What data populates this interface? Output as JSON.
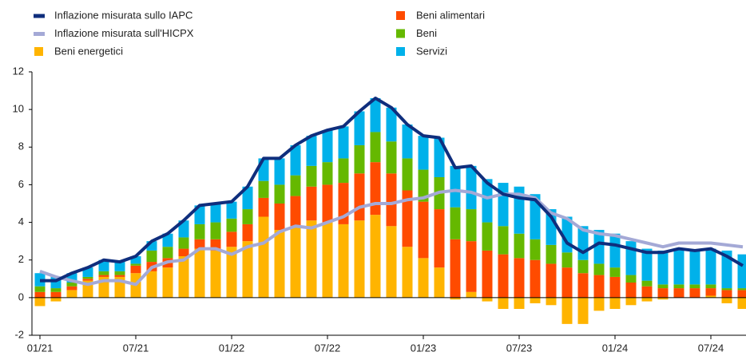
{
  "chart_data": {
    "type": "bar",
    "categories": [
      "01/21",
      null,
      null,
      null,
      null,
      null,
      "07/21",
      null,
      null,
      null,
      null,
      null,
      "01/22",
      null,
      null,
      null,
      null,
      null,
      "07/22",
      null,
      null,
      null,
      null,
      null,
      "01/23",
      null,
      null,
      null,
      null,
      null,
      "07/23",
      null,
      null,
      null,
      null,
      null,
      "01/24",
      null,
      null,
      null,
      null,
      null,
      "07/24",
      null,
      null
    ],
    "series": [
      {
        "name": "Inflazione misurata sullo IAPC",
        "style": "line",
        "color": "#0f2e7d",
        "values": [
          0.9,
          0.9,
          1.3,
          1.6,
          2.0,
          1.9,
          2.2,
          3.0,
          3.4,
          4.1,
          4.9,
          5.0,
          5.1,
          5.9,
          7.4,
          7.4,
          8.1,
          8.6,
          8.9,
          9.1,
          9.9,
          10.6,
          10.1,
          9.2,
          8.6,
          8.5,
          6.9,
          7.0,
          6.1,
          5.5,
          5.3,
          5.2,
          4.3,
          2.9,
          2.4,
          2.9,
          2.8,
          2.6,
          2.4,
          2.4,
          2.6,
          2.5,
          2.6,
          2.2,
          1.7
        ]
      },
      {
        "name": "Inflazione misurata sull'HICPX",
        "style": "line",
        "color": "#a4a9d6",
        "values": [
          1.4,
          1.1,
          0.9,
          0.7,
          0.9,
          0.9,
          0.7,
          1.6,
          1.9,
          2.0,
          2.6,
          2.6,
          2.3,
          2.7,
          2.9,
          3.5,
          3.8,
          3.7,
          4.0,
          4.3,
          4.8,
          5.0,
          5.0,
          5.2,
          5.3,
          5.6,
          5.7,
          5.6,
          5.3,
          5.5,
          5.5,
          5.3,
          4.5,
          4.2,
          3.6,
          3.4,
          3.3,
          3.1,
          2.9,
          2.7,
          2.9,
          2.9,
          2.9,
          2.8,
          2.7
        ]
      },
      {
        "name": "Beni energetici",
        "style": "bar",
        "color": "#ffb400",
        "values": [
          -0.45,
          -0.2,
          0.4,
          0.9,
          1.1,
          1.1,
          1.3,
          1.4,
          1.6,
          2.2,
          2.6,
          2.5,
          2.7,
          3.0,
          4.3,
          3.6,
          3.8,
          4.1,
          4.0,
          3.9,
          4.1,
          4.4,
          3.8,
          2.7,
          2.1,
          1.6,
          -0.1,
          0.3,
          -0.2,
          -0.6,
          -0.6,
          -0.3,
          -0.4,
          -1.4,
          -1.4,
          -0.7,
          -0.6,
          -0.4,
          -0.2,
          -0.1,
          0.0,
          0.0,
          0.1,
          -0.3,
          -0.6
        ]
      },
      {
        "name": "Beni alimentari",
        "style": "bar",
        "color": "#ff4b00",
        "values": [
          0.3,
          0.3,
          0.2,
          0.1,
          0.1,
          0.1,
          0.4,
          0.5,
          0.5,
          0.4,
          0.5,
          0.6,
          0.8,
          0.9,
          1.0,
          1.4,
          1.6,
          1.8,
          2.0,
          2.2,
          2.5,
          2.8,
          2.8,
          3.0,
          3.0,
          3.1,
          3.1,
          2.7,
          2.5,
          2.3,
          2.1,
          2.0,
          1.8,
          1.6,
          1.3,
          1.2,
          1.1,
          0.8,
          0.6,
          0.5,
          0.5,
          0.5,
          0.4,
          0.4,
          0.4
        ]
      },
      {
        "name": "Beni",
        "style": "bar",
        "color": "#65b800",
        "values": [
          0.3,
          0.2,
          0.2,
          0.1,
          0.2,
          0.2,
          0.1,
          0.6,
          0.6,
          0.6,
          0.8,
          0.9,
          0.7,
          0.8,
          0.9,
          1.0,
          1.1,
          1.1,
          1.2,
          1.3,
          1.5,
          1.6,
          1.7,
          1.7,
          1.7,
          1.7,
          1.7,
          1.7,
          1.5,
          1.5,
          1.3,
          1.1,
          1.0,
          0.8,
          0.7,
          0.6,
          0.5,
          0.4,
          0.3,
          0.2,
          0.2,
          0.2,
          0.2,
          0.1,
          0.1
        ]
      },
      {
        "name": "Servizi",
        "style": "bar",
        "color": "#00b1ea",
        "values": [
          0.7,
          0.6,
          0.5,
          0.5,
          0.6,
          0.5,
          0.4,
          0.5,
          0.7,
          0.9,
          1.0,
          1.0,
          0.9,
          1.2,
          1.2,
          1.4,
          1.6,
          1.6,
          1.7,
          1.7,
          1.8,
          1.8,
          1.8,
          1.8,
          1.8,
          2.1,
          2.2,
          2.3,
          2.3,
          2.3,
          2.5,
          2.4,
          1.9,
          1.9,
          1.8,
          1.8,
          1.8,
          1.8,
          1.7,
          1.8,
          1.9,
          1.8,
          1.9,
          2.0,
          1.8
        ]
      }
    ],
    "ylim": [
      -2,
      12
    ],
    "yticks": [
      -2,
      0,
      2,
      4,
      6,
      8,
      10,
      12
    ]
  }
}
